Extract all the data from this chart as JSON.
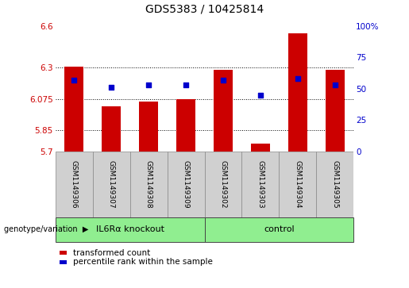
{
  "title": "GDS5383 / 10425814",
  "samples": [
    "GSM1149306",
    "GSM1149307",
    "GSM1149308",
    "GSM1149309",
    "GSM1149302",
    "GSM1149303",
    "GSM1149304",
    "GSM1149305"
  ],
  "transformed_count": [
    6.305,
    6.02,
    6.055,
    6.075,
    6.285,
    5.755,
    6.545,
    6.285
  ],
  "percentile_rank": [
    57,
    51,
    53,
    53,
    57,
    45,
    58,
    53
  ],
  "ylim_left": [
    5.7,
    6.6
  ],
  "ylim_right": [
    0,
    100
  ],
  "yticks_left": [
    5.7,
    5.85,
    6.075,
    6.3,
    6.6
  ],
  "yticks_right": [
    0,
    25,
    50,
    75,
    100
  ],
  "ytick_labels_left": [
    "5.7",
    "5.85",
    "6.075",
    "6.3",
    "6.6"
  ],
  "ytick_labels_right": [
    "0",
    "25",
    "50",
    "75",
    "100%"
  ],
  "hlines": [
    5.85,
    6.075,
    6.3
  ],
  "groups": [
    {
      "label": "IL6Rα knockout",
      "indices": [
        0,
        1,
        2,
        3
      ],
      "color": "#90EE90"
    },
    {
      "label": "control",
      "indices": [
        4,
        5,
        6,
        7
      ],
      "color": "#90EE90"
    }
  ],
  "bar_color": "#CC0000",
  "dot_color": "#0000CC",
  "bar_width": 0.5,
  "bar_bottom": 5.7,
  "background_color": "#D0D0D0",
  "plot_bg_color": "#FFFFFF",
  "grid_color": "#000000",
  "left_label_color": "#CC0000",
  "right_label_color": "#0000CC",
  "genotype_label": "genotype/variation"
}
